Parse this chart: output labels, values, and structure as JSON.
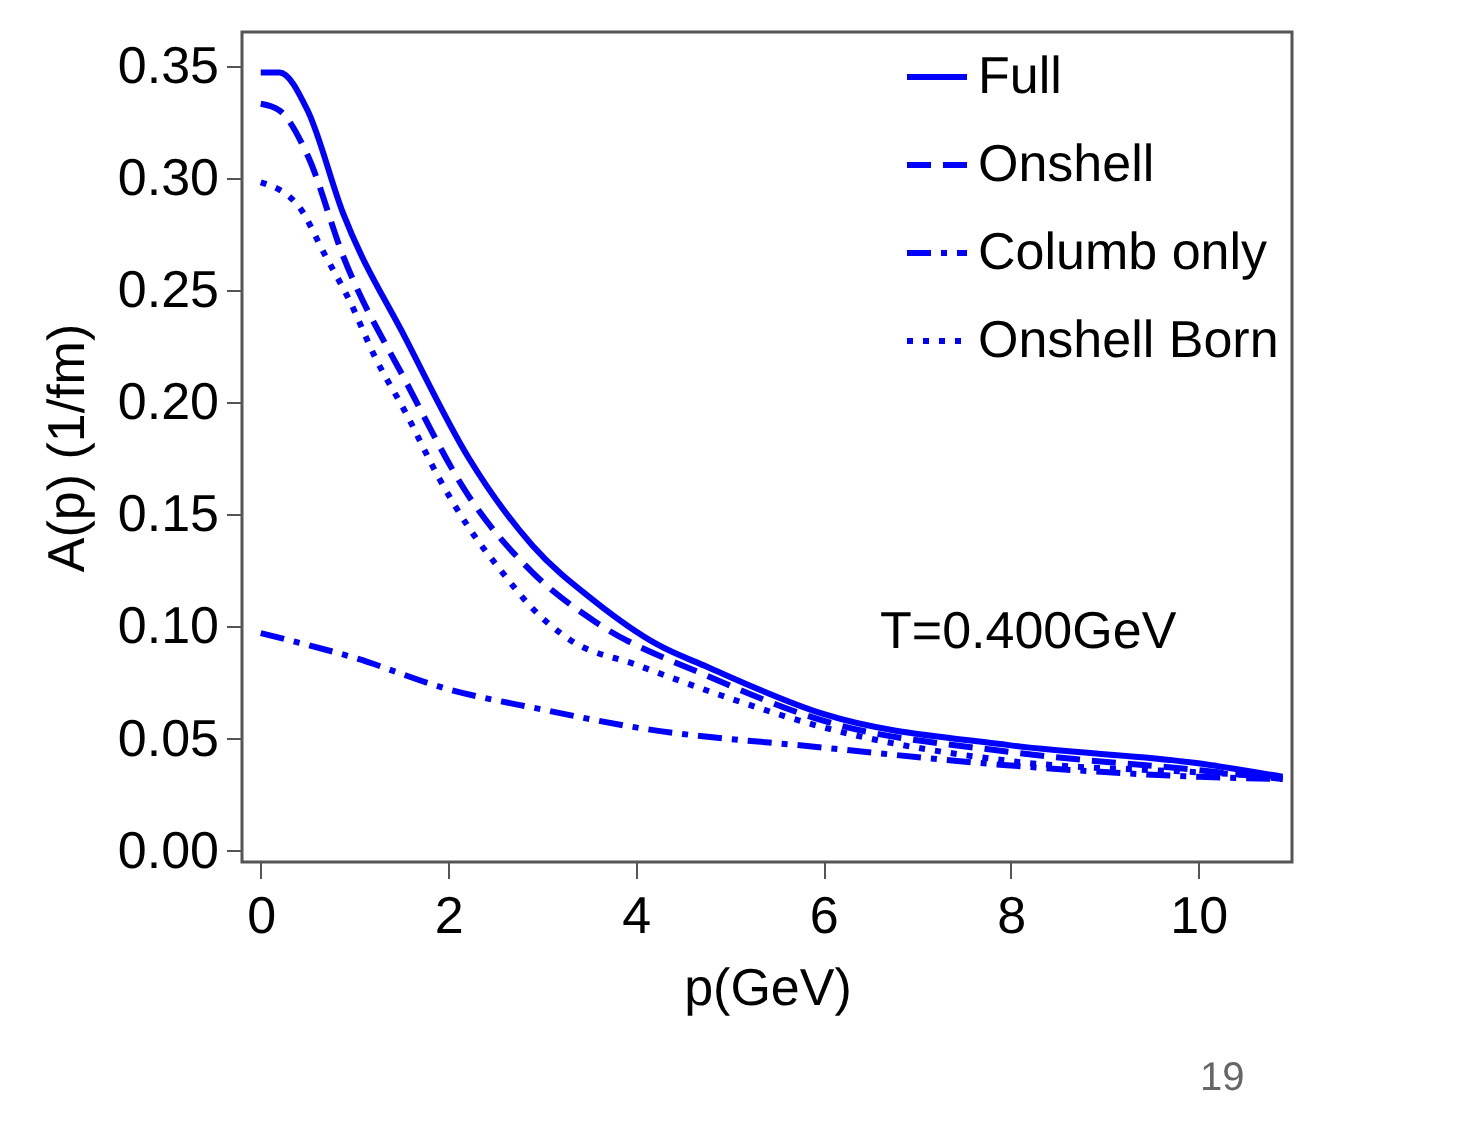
{
  "chart_data": {
    "type": "line",
    "xlabel": "p(GeV)",
    "ylabel": "A(p) (1/fm)",
    "xlim": [
      -0.2,
      11
    ],
    "xticks": [
      0,
      2,
      4,
      6,
      8,
      10
    ],
    "ylim": [
      -0.005,
      0.365
    ],
    "yticks": [
      {
        "value": 0,
        "label": "0.00"
      },
      {
        "value": 0.05,
        "label": "0.05"
      },
      {
        "value": 0.1,
        "label": "0.10"
      },
      {
        "value": 0.15,
        "label": "0.15"
      },
      {
        "value": 0.2,
        "label": "0.20"
      },
      {
        "value": 0.25,
        "label": "0.25"
      },
      {
        "value": 0.3,
        "label": "0.30"
      },
      {
        "value": 0.35,
        "label": "0.35"
      }
    ],
    "legend": "top right",
    "grid": false,
    "series": [
      {
        "name": "Full",
        "color": "#0000ff",
        "line_style": "solid",
        "x": [
          0,
          0.2,
          0.5,
          0.88,
          1.55,
          2.22,
          2.9,
          3.57,
          4.23,
          4.76,
          6,
          8,
          10,
          10.9
        ],
        "values": [
          0.347,
          0.347,
          0.33,
          0.284,
          0.228,
          0.175,
          0.136,
          0.111,
          0.092,
          0.082,
          0.061,
          0.047,
          0.039,
          0.033
        ]
      },
      {
        "name": "Onshell",
        "color": "#0000ff",
        "line_style": "dashed",
        "x": [
          0,
          0.2,
          0.5,
          0.88,
          1.55,
          2.22,
          2.9,
          3.57,
          4.76,
          6,
          8,
          10,
          10.9
        ],
        "values": [
          0.333,
          0.33,
          0.31,
          0.265,
          0.209,
          0.158,
          0.124,
          0.102,
          0.078,
          0.058,
          0.044,
          0.036,
          0.032
        ]
      },
      {
        "name": "Columb only",
        "color": "#0000ff",
        "line_style": "dashdot",
        "x": [
          0,
          1,
          2,
          3,
          4,
          6,
          8,
          10,
          10.9
        ],
        "values": [
          0.097,
          0.086,
          0.072,
          0.063,
          0.055,
          0.046,
          0.038,
          0.033,
          0.032
        ]
      },
      {
        "name": "Onshell Born",
        "color": "#0000ff",
        "line_style": "dotted",
        "x": [
          0,
          0.41,
          0.68,
          0.95,
          1.22,
          1.55,
          1.89,
          2.22,
          2.56,
          2.9,
          3.3,
          4,
          5,
          6,
          8,
          10,
          10.9
        ],
        "values": [
          0.298,
          0.287,
          0.266,
          0.245,
          0.22,
          0.195,
          0.167,
          0.144,
          0.125,
          0.108,
          0.094,
          0.083,
          0.068,
          0.055,
          0.04,
          0.035,
          0.033
        ]
      }
    ],
    "annotations": [
      "T=0.400GeV",
      "19"
    ]
  }
}
